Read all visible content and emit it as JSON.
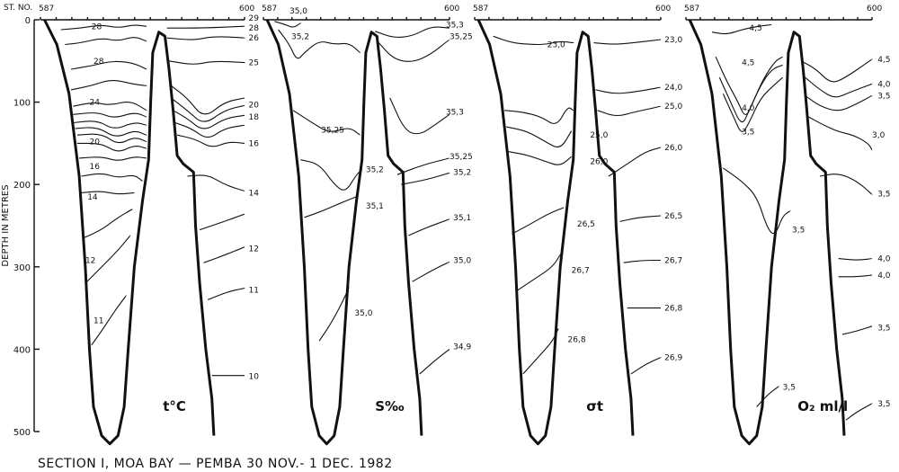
{
  "chart_data": {
    "type": "contour section",
    "yaxis": {
      "label": "DEPTH IN METRES",
      "ticks": [
        "0",
        "100",
        "200",
        "300",
        "400",
        "500"
      ],
      "range": [
        0,
        500
      ]
    },
    "station_header_label": "ST. NO.",
    "caption": "SECTION I,  MOA BAY — PEMBA   30 NOV.- 1 DEC. 1982",
    "panels": [
      {
        "name": "t°C",
        "station_start": "587",
        "station_end": "600",
        "labels": [
          {
            "text": "28",
            "x": 0.25,
            "depth": 8
          },
          {
            "text": "28",
            "x": 0.26,
            "depth": 50
          },
          {
            "text": "24",
            "x": 0.24,
            "depth": 100
          },
          {
            "text": "20",
            "x": 0.24,
            "depth": 148
          },
          {
            "text": "16",
            "x": 0.24,
            "depth": 178
          },
          {
            "text": "14",
            "x": 0.23,
            "depth": 215
          },
          {
            "text": "12",
            "x": 0.22,
            "depth": 292
          },
          {
            "text": "11",
            "x": 0.26,
            "depth": 365
          },
          {
            "text": "29",
            "x": 1.02,
            "depth": -2
          },
          {
            "text": "28",
            "x": 1.02,
            "depth": 10
          },
          {
            "text": "26",
            "x": 1.02,
            "depth": 22
          },
          {
            "text": "25",
            "x": 1.02,
            "depth": 52
          },
          {
            "text": "20",
            "x": 1.02,
            "depth": 103
          },
          {
            "text": "18",
            "x": 1.02,
            "depth": 118
          },
          {
            "text": "16",
            "x": 1.02,
            "depth": 150
          },
          {
            "text": "14",
            "x": 1.02,
            "depth": 210
          },
          {
            "text": "12",
            "x": 1.02,
            "depth": 278
          },
          {
            "text": "11",
            "x": 1.02,
            "depth": 328
          },
          {
            "text": "10",
            "x": 1.02,
            "depth": 433
          }
        ]
      },
      {
        "name": "S‰",
        "station_start": "587",
        "station_end": "600",
        "labels": [
          {
            "text": "35,0",
            "x": 0.14,
            "depth": -11
          },
          {
            "text": "35,2",
            "x": 0.15,
            "depth": 20
          },
          {
            "text": "35,25",
            "x": 0.31,
            "depth": 134
          },
          {
            "text": "35,2",
            "x": 0.55,
            "depth": 182
          },
          {
            "text": "35,1",
            "x": 0.55,
            "depth": 226
          },
          {
            "text": "35,0",
            "x": 0.49,
            "depth": 356
          },
          {
            "text": "35,3",
            "x": 0.98,
            "depth": 6
          },
          {
            "text": "35,25",
            "x": 1.0,
            "depth": 20
          },
          {
            "text": "35,3",
            "x": 0.98,
            "depth": 112
          },
          {
            "text": "35,25",
            "x": 1.0,
            "depth": 166
          },
          {
            "text": "35,2",
            "x": 1.02,
            "depth": 185
          },
          {
            "text": "35,1",
            "x": 1.02,
            "depth": 240
          },
          {
            "text": "35,0",
            "x": 1.02,
            "depth": 292
          },
          {
            "text": "34,9",
            "x": 1.02,
            "depth": 397
          }
        ]
      },
      {
        "name": "σt",
        "station_start": "587",
        "station_end": "600",
        "labels": [
          {
            "text": "23,0",
            "x": 0.39,
            "depth": 30
          },
          {
            "text": "25,0",
            "x": 0.62,
            "depth": 140
          },
          {
            "text": "26,0",
            "x": 0.62,
            "depth": 172
          },
          {
            "text": "26,5",
            "x": 0.55,
            "depth": 248
          },
          {
            "text": "26,7",
            "x": 0.52,
            "depth": 304
          },
          {
            "text": "26,8",
            "x": 0.5,
            "depth": 388
          },
          {
            "text": "23,0",
            "x": 1.02,
            "depth": 24
          },
          {
            "text": "24,0",
            "x": 1.02,
            "depth": 82
          },
          {
            "text": "25,0",
            "x": 1.02,
            "depth": 105
          },
          {
            "text": "26,0",
            "x": 1.02,
            "depth": 155
          },
          {
            "text": "26,5",
            "x": 1.02,
            "depth": 238
          },
          {
            "text": "26,7",
            "x": 1.02,
            "depth": 292
          },
          {
            "text": "26,8",
            "x": 1.02,
            "depth": 350
          },
          {
            "text": "26,9",
            "x": 1.02,
            "depth": 410
          }
        ]
      },
      {
        "name": "O₂ ml/l",
        "station_start": "587",
        "station_end": "600",
        "labels": [
          {
            "text": "4,5",
            "x": 0.34,
            "depth": 10
          },
          {
            "text": "4,5",
            "x": 0.3,
            "depth": 52
          },
          {
            "text": "4,0",
            "x": 0.3,
            "depth": 107
          },
          {
            "text": "3,5",
            "x": 0.3,
            "depth": 136
          },
          {
            "text": "3,5",
            "x": 0.57,
            "depth": 255
          },
          {
            "text": "3,5",
            "x": 0.52,
            "depth": 446
          },
          {
            "text": "4,5",
            "x": 1.03,
            "depth": 48
          },
          {
            "text": "4,0",
            "x": 1.03,
            "depth": 78
          },
          {
            "text": "3,5",
            "x": 1.03,
            "depth": 92
          },
          {
            "text": "3,0",
            "x": 1.0,
            "depth": 140
          },
          {
            "text": "3,5",
            "x": 1.03,
            "depth": 211
          },
          {
            "text": "4,0",
            "x": 1.03,
            "depth": 290
          },
          {
            "text": "4,0",
            "x": 1.03,
            "depth": 310
          },
          {
            "text": "3,5",
            "x": 1.03,
            "depth": 374
          },
          {
            "text": "3,5",
            "x": 1.03,
            "depth": 466
          }
        ]
      }
    ]
  }
}
